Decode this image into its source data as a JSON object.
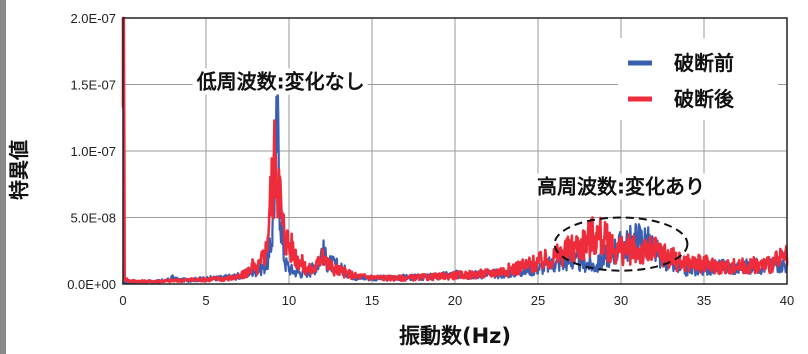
{
  "chart_data": {
    "type": "line",
    "xlabel": "振動数(Hz)",
    "ylabel": "特異値",
    "xlim": [
      0,
      40
    ],
    "ylim": [
      0,
      2e-07
    ],
    "x_ticks": [
      "0",
      "5",
      "10",
      "15",
      "20",
      "25",
      "30",
      "35",
      "40"
    ],
    "x_tick_values": [
      0,
      5,
      10,
      15,
      20,
      25,
      30,
      35,
      40
    ],
    "y_ticks": [
      "0.0E+00",
      "5.0E-08",
      "1.0E-07",
      "1.5E-07",
      "2.0E-07"
    ],
    "y_tick_values": [
      0,
      5e-08,
      1e-07,
      1.5e-07,
      2e-07
    ],
    "grid": true,
    "legend_position": "top-right",
    "annotations": [
      {
        "text": "低周波数:変化なし",
        "x": 9.5,
        "y": 1.47e-07
      },
      {
        "text": "高周波数:変化あり",
        "x": 30,
        "y": 6.8e-08
      }
    ],
    "highlight_ellipse": {
      "cx": 30.0,
      "cy": 3e-08,
      "rx": 4.0,
      "ry": 2e-08
    },
    "series": [
      {
        "name": "破断前",
        "color": "#3a5fb0",
        "x": [
          0,
          1,
          2,
          2.8,
          3.0,
          3.3,
          4,
          5,
          6,
          7,
          7.5,
          8,
          8.5,
          8.8,
          9.0,
          9.2,
          9.3,
          9.4,
          9.6,
          9.8,
          10.2,
          10.8,
          11.3,
          11.8,
          12.0,
          12.3,
          12.8,
          13.2,
          14,
          15,
          16,
          17,
          18,
          19,
          20,
          21,
          22,
          23,
          24,
          25,
          26,
          27,
          27.5,
          28,
          28.5,
          29,
          29.5,
          30,
          30.5,
          31,
          31.5,
          32,
          32.5,
          33,
          33.5,
          34,
          35,
          36,
          37,
          38,
          39,
          39.5,
          40
        ],
        "values": [
          1e-09,
          1.5e-09,
          2e-09,
          3e-09,
          5e-09,
          3e-09,
          3e-09,
          4e-09,
          4.5e-09,
          6e-09,
          8e-09,
          1e-08,
          1.3e-08,
          2e-08,
          4e-08,
          9e-08,
          1.24e-07,
          8e-08,
          3e-08,
          1.5e-08,
          1e-08,
          8e-09,
          1e-08,
          1.6e-08,
          2.6e-08,
          1.6e-08,
          1.4e-08,
          1.1e-08,
          5e-09,
          4.5e-09,
          4.5e-09,
          5e-09,
          5e-09,
          6e-09,
          7e-09,
          7e-09,
          7.5e-09,
          8e-09,
          1e-08,
          1.2e-08,
          1.5e-08,
          1.8e-08,
          1.6e-08,
          1.5e-08,
          1.3e-08,
          2e-08,
          2.5e-08,
          2.8e-08,
          3e-08,
          3.4e-08,
          3.2e-08,
          2.5e-08,
          2e-08,
          1.5e-08,
          1.2e-08,
          1e-08,
          1.2e-08,
          1.3e-08,
          1.2e-08,
          1.4e-08,
          1.3e-08,
          1.6e-08,
          1.4e-08
        ]
      },
      {
        "name": "破断後",
        "color": "#ee2c3c",
        "x": [
          0,
          0.05,
          0.1,
          0.3,
          1,
          2,
          3,
          4,
          5,
          6,
          7,
          7.5,
          7.8,
          8.0,
          8.3,
          8.6,
          8.8,
          9.0,
          9.2,
          9.4,
          9.6,
          9.8,
          10.0,
          10.3,
          10.6,
          11.0,
          11.4,
          11.8,
          12.0,
          12.3,
          12.8,
          13.5,
          14,
          15,
          16,
          17,
          18,
          19,
          20,
          21,
          22,
          23,
          24,
          25,
          25.5,
          26,
          26.5,
          27,
          27.5,
          28,
          28.5,
          29,
          29.5,
          30,
          30.5,
          31,
          31.5,
          32,
          32.5,
          33,
          33.5,
          34,
          35,
          36,
          37,
          38,
          39,
          39.5,
          40
        ],
        "values": [
          2e-07,
          2e-07,
          5e-09,
          2.5e-09,
          2e-09,
          2e-09,
          2.5e-09,
          3e-09,
          3.5e-09,
          4e-09,
          5e-09,
          9e-09,
          1.4e-08,
          1e-08,
          1.6e-08,
          2.5e-08,
          5e-08,
          8e-08,
          9.6e-08,
          7.5e-08,
          4.5e-08,
          3.6e-08,
          3e-08,
          2.4e-08,
          1.8e-08,
          1.2e-08,
          1e-08,
          1.6e-08,
          2.6e-08,
          1.5e-08,
          1.1e-08,
          8e-09,
          6e-09,
          5e-09,
          4.5e-09,
          4.5e-09,
          5e-09,
          5.5e-09,
          6.5e-09,
          7e-09,
          8e-09,
          1e-08,
          1.3e-08,
          1.6e-08,
          1.8e-08,
          2e-08,
          2.3e-08,
          2.6e-08,
          2.9e-08,
          3.3e-08,
          3.8e-08,
          3.3e-08,
          2.7e-08,
          2.5e-08,
          2.6e-08,
          2.5e-08,
          2.4e-08,
          2.5e-08,
          2.3e-08,
          2e-08,
          1.7e-08,
          1.6e-08,
          1.5e-08,
          1.3e-08,
          1.3e-08,
          1.4e-08,
          1.5e-08,
          1.8e-08,
          2e-08
        ]
      }
    ]
  }
}
